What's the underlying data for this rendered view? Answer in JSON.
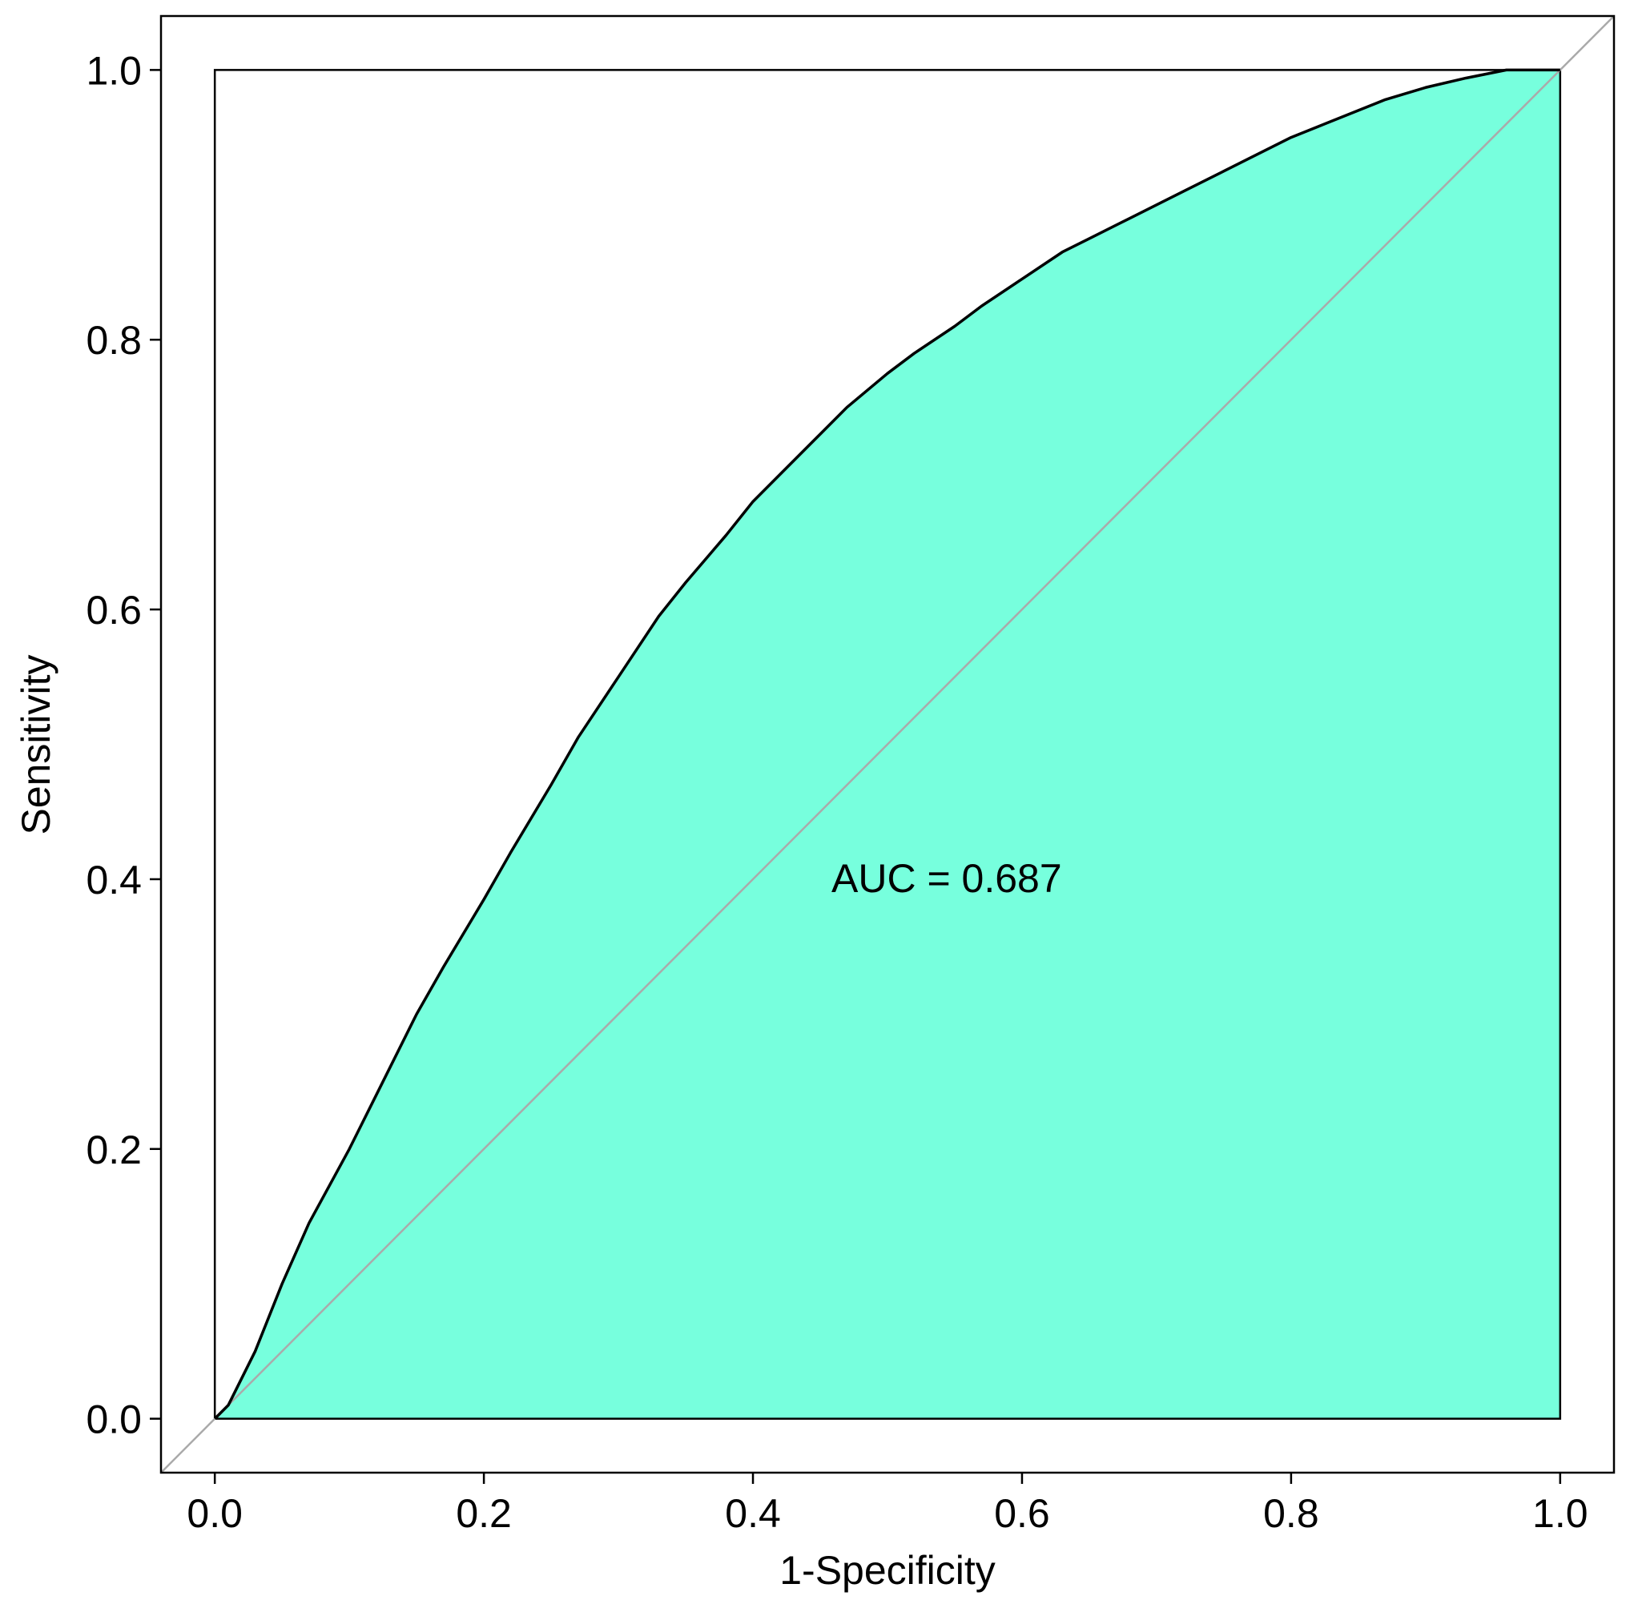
{
  "chart_data": {
    "type": "area",
    "title": "",
    "xlabel": "1-Specificity",
    "ylabel": "Sensitivity",
    "xlim": [
      -0.04,
      1.04
    ],
    "ylim": [
      -0.04,
      1.04
    ],
    "xticks": [
      0.0,
      0.2,
      0.4,
      0.6,
      0.8,
      1.0
    ],
    "yticks": [
      0.0,
      0.2,
      0.4,
      0.6,
      0.8,
      1.0
    ],
    "xtick_labels": [
      "0.0",
      "0.2",
      "0.4",
      "0.6",
      "0.8",
      "1.0"
    ],
    "ytick_labels": [
      "0.0",
      "0.2",
      "0.4",
      "0.6",
      "0.8",
      "1.0"
    ],
    "grid": false,
    "annotation": "AUC = 0.687",
    "fill_color": "#77ffdd",
    "curve_color": "#000000",
    "reference_line_color": "#aaaaaa",
    "series": [
      {
        "x": [
          0.0,
          0.01,
          0.03,
          0.05,
          0.07,
          0.1,
          0.12,
          0.15,
          0.17,
          0.2,
          0.22,
          0.25,
          0.27,
          0.3,
          0.33,
          0.35,
          0.38,
          0.4,
          0.42,
          0.45,
          0.47,
          0.5,
          0.52,
          0.55,
          0.57,
          0.6,
          0.63,
          0.65,
          0.68,
          0.7,
          0.72,
          0.75,
          0.77,
          0.8,
          0.82,
          0.85,
          0.87,
          0.9,
          0.93,
          0.96,
          1.0
        ],
        "y": [
          0.0,
          0.01,
          0.05,
          0.1,
          0.145,
          0.2,
          0.24,
          0.3,
          0.335,
          0.385,
          0.42,
          0.47,
          0.505,
          0.55,
          0.595,
          0.62,
          0.655,
          0.68,
          0.7,
          0.73,
          0.75,
          0.775,
          0.79,
          0.81,
          0.825,
          0.845,
          0.865,
          0.875,
          0.89,
          0.9,
          0.91,
          0.925,
          0.935,
          0.95,
          0.958,
          0.97,
          0.978,
          0.987,
          0.994,
          1.0,
          1.0
        ]
      }
    ]
  }
}
